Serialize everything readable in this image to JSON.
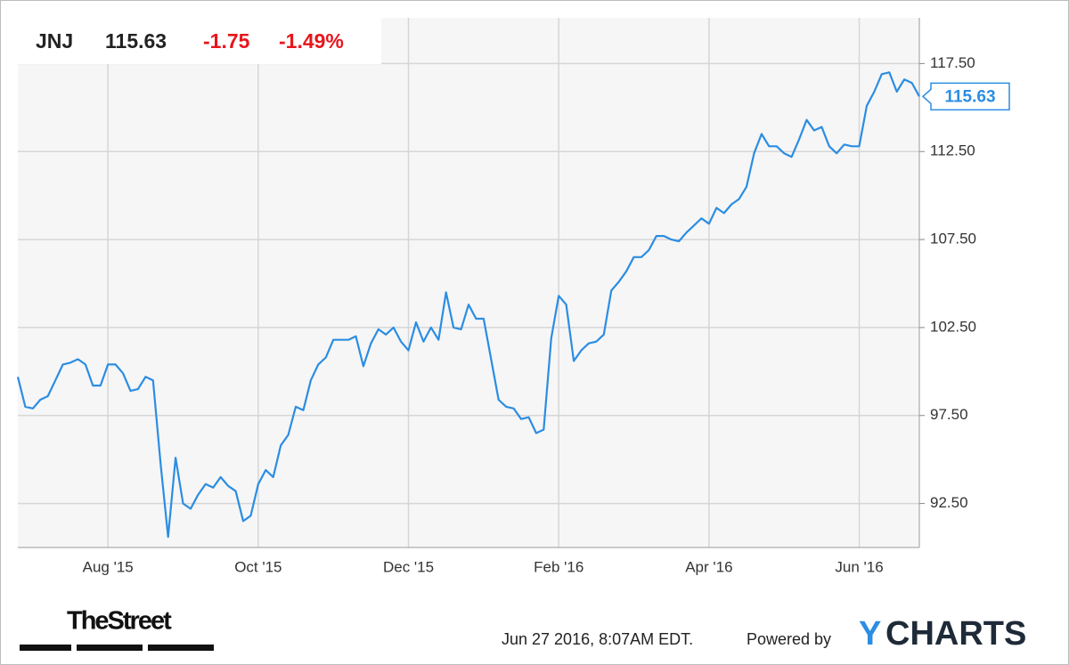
{
  "header": {
    "ticker": "JNJ",
    "change": -1.75,
    "change_percent": "-1.49%"
  },
  "footer": {
    "brand": "TheStreet",
    "timestamp": "Jun 27 2016, 8:07AM EDT.",
    "powered_by": "Powered by",
    "logo_mark": "Y",
    "logo_text": "CHARTS"
  },
  "chart_data": {
    "type": "line",
    "categories": [
      null,
      null,
      null,
      null,
      null,
      null,
      null,
      null,
      null,
      null,
      null,
      null,
      "Aug '15",
      null,
      null,
      null,
      null,
      null,
      null,
      null,
      null,
      null,
      null,
      null,
      null,
      null,
      null,
      null,
      null,
      null,
      null,
      null,
      "Oct '15",
      null,
      null,
      null,
      null,
      null,
      null,
      null,
      null,
      null,
      null,
      null,
      null,
      null,
      null,
      null,
      null,
      null,
      null,
      null,
      "Dec '15",
      null,
      null,
      null,
      null,
      null,
      null,
      null,
      null,
      null,
      null,
      null,
      null,
      null,
      null,
      null,
      null,
      null,
      null,
      null,
      "Feb '16",
      null,
      null,
      null,
      null,
      null,
      null,
      null,
      null,
      null,
      null,
      null,
      null,
      null,
      null,
      null,
      null,
      null,
      null,
      null,
      "Apr '16",
      null,
      null,
      null,
      null,
      null,
      null,
      null,
      null,
      null,
      null,
      null,
      null,
      null,
      null,
      null,
      null,
      null,
      null,
      null,
      "Jun '16",
      null,
      null,
      null,
      null,
      null,
      null,
      null,
      null
    ],
    "series": [
      {
        "name": "JNJ",
        "color": "#2b8de3",
        "values": [
          99.7,
          98.0,
          97.9,
          98.4,
          98.6,
          99.5,
          100.4,
          100.5,
          100.7,
          100.4,
          99.2,
          99.2,
          100.4,
          100.4,
          99.9,
          98.9,
          99.0,
          99.7,
          99.5,
          94.8,
          90.6,
          95.1,
          92.5,
          92.2,
          93.0,
          93.6,
          93.4,
          94.0,
          93.5,
          93.2,
          91.5,
          91.8,
          93.6,
          94.4,
          94.0,
          95.8,
          96.4,
          98.0,
          97.8,
          99.5,
          100.4,
          100.8,
          101.8,
          101.8,
          101.8,
          102.0,
          100.3,
          101.6,
          102.4,
          102.1,
          102.5,
          101.7,
          101.2,
          102.8,
          101.7,
          102.5,
          101.8,
          104.5,
          102.5,
          102.4,
          103.8,
          103.0,
          103.0,
          100.7,
          98.4,
          98.0,
          97.9,
          97.3,
          97.4,
          96.5,
          96.7,
          101.9,
          104.3,
          103.8,
          100.6,
          101.2,
          101.6,
          101.7,
          102.1,
          104.6,
          105.1,
          105.7,
          106.5,
          106.5,
          106.9,
          107.7,
          107.7,
          107.5,
          107.4,
          107.9,
          108.3,
          108.7,
          108.4,
          109.3,
          109.0,
          109.5,
          109.8,
          110.5,
          112.4,
          113.5,
          112.8,
          112.8,
          112.4,
          112.2,
          113.2,
          114.3,
          113.7,
          113.9,
          112.8,
          112.4,
          112.9,
          112.8,
          112.8,
          115.1,
          115.9,
          116.9,
          117.0,
          115.9,
          116.6,
          116.4,
          115.63
        ]
      }
    ],
    "ylim": [
      90.0,
      120.1
    ],
    "yticks": [
      {
        "value": 92.5,
        "label": "92.50"
      },
      {
        "value": 97.5,
        "label": "97.50"
      },
      {
        "value": 102.5,
        "label": "102.50"
      },
      {
        "value": 107.5,
        "label": "107.50"
      },
      {
        "value": 112.5,
        "label": "112.50"
      },
      {
        "value": 117.5,
        "label": "117.50"
      }
    ],
    "grid": true
  }
}
